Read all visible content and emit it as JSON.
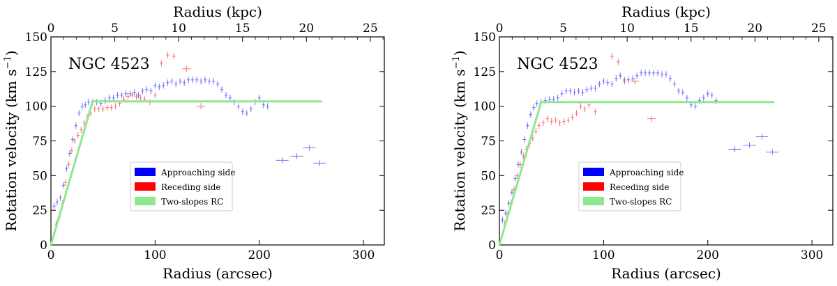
{
  "chart_data": [
    {
      "type": "scatter",
      "title": "NGC 4523",
      "xlabel": "Radius (arcsec)",
      "x2label": "Radius (kpc)",
      "ylabel": "Rotation velocity (km s",
      "ylabel_sup": "−1",
      "ylabel_close": ")",
      "xlim": [
        0,
        320
      ],
      "x2lim": [
        0,
        26.1
      ],
      "ylim": [
        0,
        150
      ],
      "xticks": [
        "0",
        "100",
        "200",
        "300"
      ],
      "xticks_values": [
        0,
        100,
        200,
        300
      ],
      "x2ticks": [
        "0",
        "5",
        "10",
        "15",
        "20",
        "25"
      ],
      "x2ticks_values": [
        0,
        5,
        10,
        15,
        20,
        25
      ],
      "yticks": [
        "0",
        "25",
        "50",
        "75",
        "100",
        "125",
        "150"
      ],
      "yticks_values": [
        0,
        25,
        50,
        75,
        100,
        125,
        150
      ],
      "legend_position": "center",
      "series": [
        {
          "name": "Approaching side",
          "color": "#3b3bff",
          "points": [
            [
              3,
              28
            ],
            [
              6,
              31
            ],
            [
              9,
              34
            ],
            [
              12,
              43
            ],
            [
              15,
              55
            ],
            [
              18,
              66
            ],
            [
              21,
              76
            ],
            [
              24,
              86
            ],
            [
              27,
              95
            ],
            [
              30,
              100
            ],
            [
              33,
              101
            ],
            [
              36,
              103
            ],
            [
              40,
              103
            ],
            [
              44,
              103
            ],
            [
              48,
              102
            ],
            [
              52,
              104
            ],
            [
              56,
              106
            ],
            [
              60,
              106
            ],
            [
              64,
              108
            ],
            [
              68,
              108
            ],
            [
              72,
              109
            ],
            [
              76,
              109
            ],
            [
              80,
              110
            ],
            [
              84,
              108
            ],
            [
              88,
              111
            ],
            [
              92,
              112
            ],
            [
              96,
              111
            ],
            [
              100,
              115
            ],
            [
              104,
              114
            ],
            [
              108,
              115
            ],
            [
              112,
              117
            ],
            [
              116,
              118
            ],
            [
              120,
              116
            ],
            [
              124,
              118
            ],
            [
              128,
              117
            ],
            [
              132,
              119
            ],
            [
              136,
              119
            ],
            [
              140,
              119
            ],
            [
              144,
              118
            ],
            [
              148,
              119
            ],
            [
              152,
              118
            ],
            [
              156,
              118
            ],
            [
              160,
              116
            ],
            [
              164,
              112
            ],
            [
              168,
              108
            ],
            [
              172,
              106
            ],
            [
              176,
              103
            ],
            [
              180,
              100
            ],
            [
              184,
              96
            ],
            [
              188,
              95
            ],
            [
              192,
              98
            ],
            [
              196,
              103
            ],
            [
              200,
              106
            ],
            [
              204,
              101
            ],
            [
              208,
              100
            ],
            [
              222,
              61
            ],
            [
              236,
              64
            ],
            [
              248,
              70
            ],
            [
              258,
              59
            ]
          ]
        },
        {
          "name": "Receding side",
          "color": "#ff3b3b",
          "points": [
            [
              5,
              15
            ],
            [
              8,
              20
            ],
            [
              11,
              30
            ],
            [
              14,
              45
            ],
            [
              17,
              58
            ],
            [
              20,
              68
            ],
            [
              23,
              75
            ],
            [
              26,
              79
            ],
            [
              29,
              83
            ],
            [
              32,
              88
            ],
            [
              35,
              92
            ],
            [
              38,
              95
            ],
            [
              42,
              98
            ],
            [
              46,
              98
            ],
            [
              50,
              98
            ],
            [
              54,
              99
            ],
            [
              58,
              99
            ],
            [
              62,
              100
            ],
            [
              66,
              102
            ],
            [
              70,
              105
            ],
            [
              74,
              107
            ],
            [
              78,
              108
            ],
            [
              82,
              107
            ],
            [
              86,
              106
            ],
            [
              90,
              105
            ],
            [
              95,
              103
            ],
            [
              100,
              108
            ],
            [
              106,
              131
            ],
            [
              112,
              137
            ],
            [
              118,
              136
            ],
            [
              130,
              127
            ],
            [
              144,
              100
            ]
          ]
        },
        {
          "name": "Two-slopes RC",
          "color": "#8ee88e",
          "line": [
            [
              0,
              0
            ],
            [
              40,
              103.5
            ],
            [
              260,
              103.5
            ]
          ]
        }
      ]
    },
    {
      "type": "scatter",
      "title": "NGC 4523",
      "xlabel": "Radius (arcsec)",
      "x2label": "Radius (kpc)",
      "ylabel": "Rotation velocity (km s",
      "ylabel_sup": "−1",
      "ylabel_close": ")",
      "xlim": [
        0,
        320
      ],
      "x2lim": [
        0,
        26.1
      ],
      "ylim": [
        0,
        150
      ],
      "xticks": [
        "0",
        "100",
        "200",
        "300"
      ],
      "xticks_values": [
        0,
        100,
        200,
        300
      ],
      "x2ticks": [
        "0",
        "5",
        "10",
        "15",
        "20",
        "25"
      ],
      "x2ticks_values": [
        0,
        5,
        10,
        15,
        20,
        25
      ],
      "yticks": [
        "0",
        "25",
        "50",
        "75",
        "100",
        "125",
        "150"
      ],
      "yticks_values": [
        0,
        25,
        50,
        75,
        100,
        125,
        150
      ],
      "legend_position": "center",
      "series": [
        {
          "name": "Approaching side",
          "color": "#3b3bff",
          "points": [
            [
              3,
              18
            ],
            [
              6,
              23
            ],
            [
              9,
              30
            ],
            [
              12,
              38
            ],
            [
              15,
              48
            ],
            [
              18,
              58
            ],
            [
              21,
              67
            ],
            [
              24,
              76
            ],
            [
              27,
              86
            ],
            [
              30,
              94
            ],
            [
              33,
              99
            ],
            [
              36,
              102
            ],
            [
              40,
              103
            ],
            [
              44,
              104
            ],
            [
              48,
              105
            ],
            [
              52,
              105
            ],
            [
              56,
              106
            ],
            [
              60,
              109
            ],
            [
              64,
              111
            ],
            [
              68,
              111
            ],
            [
              72,
              110
            ],
            [
              76,
              111
            ],
            [
              80,
              110
            ],
            [
              84,
              112
            ],
            [
              88,
              113
            ],
            [
              92,
              113
            ],
            [
              96,
              116
            ],
            [
              100,
              118
            ],
            [
              104,
              117
            ],
            [
              108,
              116
            ],
            [
              112,
              120
            ],
            [
              116,
              122
            ],
            [
              120,
              118
            ],
            [
              124,
              119
            ],
            [
              128,
              120
            ],
            [
              132,
              122
            ],
            [
              136,
              124
            ],
            [
              140,
              124
            ],
            [
              144,
              124
            ],
            [
              148,
              124
            ],
            [
              152,
              124
            ],
            [
              156,
              123
            ],
            [
              160,
              123
            ],
            [
              164,
              120
            ],
            [
              168,
              116
            ],
            [
              172,
              111
            ],
            [
              176,
              110
            ],
            [
              180,
              106
            ],
            [
              184,
              101
            ],
            [
              188,
              100
            ],
            [
              192,
              104
            ],
            [
              196,
              106
            ],
            [
              200,
              109
            ],
            [
              204,
              108
            ],
            [
              208,
              104
            ],
            [
              226,
              69
            ],
            [
              240,
              72
            ],
            [
              252,
              78
            ],
            [
              262,
              67
            ]
          ]
        },
        {
          "name": "Receding side",
          "color": "#ff3b3b",
          "points": [
            [
              5,
              15
            ],
            [
              8,
              22
            ],
            [
              11,
              30
            ],
            [
              14,
              40
            ],
            [
              17,
              50
            ],
            [
              20,
              58
            ],
            [
              23,
              64
            ],
            [
              26,
              69
            ],
            [
              29,
              73
            ],
            [
              32,
              77
            ],
            [
              35,
              82
            ],
            [
              38,
              86
            ],
            [
              42,
              88
            ],
            [
              46,
              91
            ],
            [
              50,
              89
            ],
            [
              54,
              90
            ],
            [
              58,
              88
            ],
            [
              62,
              89
            ],
            [
              66,
              90
            ],
            [
              70,
              92
            ],
            [
              74,
              95
            ],
            [
              78,
              100
            ],
            [
              82,
              98
            ],
            [
              86,
              101
            ],
            [
              92,
              96
            ],
            [
              108,
              136
            ],
            [
              114,
              132
            ],
            [
              120,
              119
            ],
            [
              130,
              118
            ],
            [
              146,
              91
            ]
          ]
        },
        {
          "name": "Two-slopes RC",
          "color": "#8ee88e",
          "line": [
            [
              0,
              0
            ],
            [
              40,
              103
            ],
            [
              264,
              103
            ]
          ]
        }
      ]
    }
  ]
}
